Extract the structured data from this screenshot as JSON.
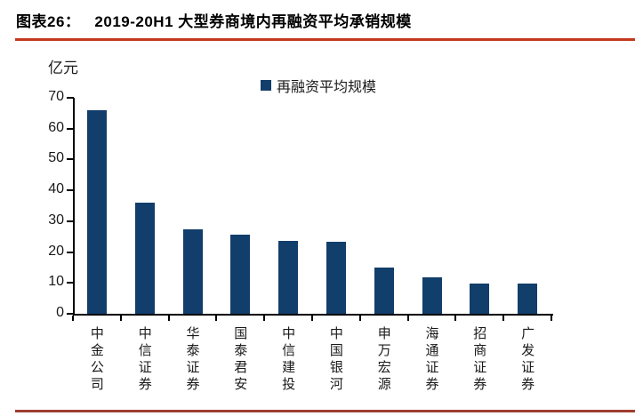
{
  "figure": {
    "label": "图表26：",
    "title": "2019-20H1 大型券商境内再融资平均承销规模"
  },
  "legend": {
    "label": "再融资平均规模"
  },
  "colors": {
    "bar": "#123E6B",
    "top_rule": "#C4391D",
    "bottom_rule": "#9E3C2F",
    "axis": "#000000"
  },
  "chart_data": {
    "type": "bar",
    "title": "2019-20H1 大型券商境内再融资平均承销规模",
    "unit": "亿元",
    "series_name": "再融资平均规模",
    "categories": [
      "中金公司",
      "中信证券",
      "华泰证券",
      "国泰君安",
      "中信建投",
      "中国银河",
      "申万宏源",
      "海通证券",
      "招商证券",
      "广发证券"
    ],
    "values": [
      66,
      36,
      27.3,
      25.5,
      23.6,
      23.3,
      15,
      11.8,
      9.9,
      9.8
    ],
    "ylim": [
      0,
      70
    ],
    "yticks": [
      0,
      10,
      20,
      30,
      40,
      50,
      60,
      70
    ],
    "grid": false,
    "legend_position": "top-center"
  }
}
